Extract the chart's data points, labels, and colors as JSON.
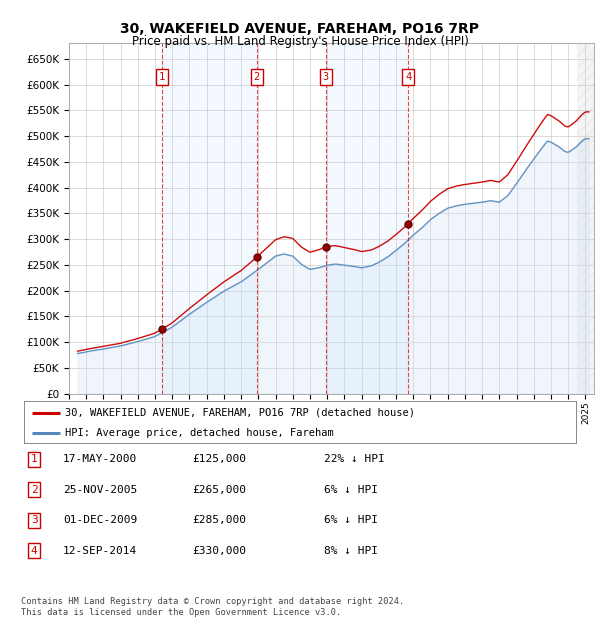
{
  "title1": "30, WAKEFIELD AVENUE, FAREHAM, PO16 7RP",
  "title2": "Price paid vs. HM Land Registry's House Price Index (HPI)",
  "ylim": [
    0,
    680000
  ],
  "yticks": [
    0,
    50000,
    100000,
    150000,
    200000,
    250000,
    300000,
    350000,
    400000,
    450000,
    500000,
    550000,
    600000,
    650000
  ],
  "ytick_labels": [
    "£0",
    "£50K",
    "£100K",
    "£150K",
    "£200K",
    "£250K",
    "£300K",
    "£350K",
    "£400K",
    "£450K",
    "£500K",
    "£550K",
    "£600K",
    "£650K"
  ],
  "sale_dates": [
    2000.38,
    2005.9,
    2009.92,
    2014.71
  ],
  "sale_prices": [
    125000,
    265000,
    285000,
    330000
  ],
  "sale_labels": [
    "1",
    "2",
    "3",
    "4"
  ],
  "vline_color": "#cc0000",
  "hpi_line_color": "#5588bb",
  "hpi_fill_color": "#cce0f5",
  "sale_line_color": "#cc0000",
  "background_color": "#ffffff",
  "grid_color": "#cccccc",
  "shade_color": "#ddeeff",
  "legend_label_sale": "30, WAKEFIELD AVENUE, FAREHAM, PO16 7RP (detached house)",
  "legend_label_hpi": "HPI: Average price, detached house, Fareham",
  "footer": "Contains HM Land Registry data © Crown copyright and database right 2024.\nThis data is licensed under the Open Government Licence v3.0.",
  "table_entries": [
    {
      "label": "1",
      "date": "17-MAY-2000",
      "price": "£125,000",
      "hpi": "22% ↓ HPI"
    },
    {
      "label": "2",
      "date": "25-NOV-2005",
      "price": "£265,000",
      "hpi": "6% ↓ HPI"
    },
    {
      "label": "3",
      "date": "01-DEC-2009",
      "price": "£285,000",
      "hpi": "6% ↓ HPI"
    },
    {
      "label": "4",
      "date": "12-SEP-2014",
      "price": "£330,000",
      "hpi": "8% ↓ HPI"
    }
  ],
  "xlim_left": 1995.0,
  "xlim_right": 2025.5
}
